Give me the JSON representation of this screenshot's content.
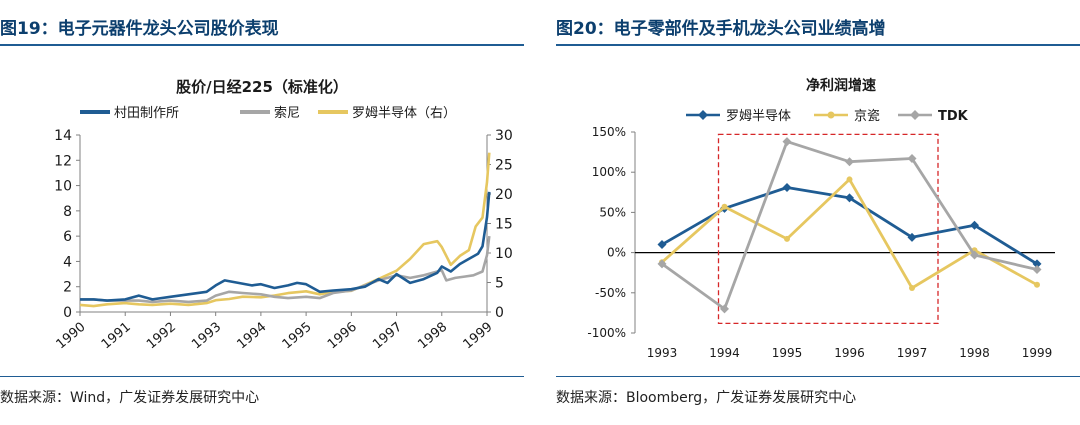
{
  "left": {
    "figure_title": "图19：电子元器件龙头公司股价表现",
    "source": "数据来源：Wind，广发证券发展研究中心"
  },
  "right": {
    "figure_title": "图20：电子零部件及手机龙头公司业绩高增",
    "source": "数据来源：Bloomberg，广发证券发展研究中心"
  },
  "chart_data": [
    {
      "type": "line",
      "title": "股价/日经225（标准化）",
      "x_range": [
        1990,
        1999
      ],
      "x_ticks": [
        "1990",
        "1991",
        "1992",
        "1993",
        "1994",
        "1995",
        "1996",
        "1997",
        "1998",
        "1999"
      ],
      "y_left_range": [
        0,
        14
      ],
      "y_left_ticks": [
        "0",
        "2",
        "4",
        "6",
        "8",
        "10",
        "12",
        "14"
      ],
      "y_right_range": [
        0,
        30
      ],
      "y_right_ticks": [
        "0",
        "5",
        "10",
        "15",
        "20",
        "25",
        "30"
      ],
      "legend_position": "top",
      "series": [
        {
          "name": "村田制作所",
          "color": "#1f5c93",
          "axis": "left",
          "x": [
            1990,
            1990.3,
            1990.6,
            1991,
            1991.3,
            1991.6,
            1992,
            1992.4,
            1992.8,
            1993,
            1993.2,
            1993.5,
            1993.8,
            1994,
            1994.3,
            1994.6,
            1994.8,
            1995,
            1995.3,
            1995.6,
            1996,
            1996.3,
            1996.6,
            1996.8,
            1997,
            1997.3,
            1997.6,
            1997.9,
            1998,
            1998.2,
            1998.4,
            1998.6,
            1998.8,
            1998.9,
            1999,
            1999.05
          ],
          "y": [
            1.0,
            1.0,
            0.9,
            1.0,
            1.3,
            1.0,
            1.2,
            1.4,
            1.6,
            2.1,
            2.5,
            2.3,
            2.1,
            2.2,
            1.9,
            2.1,
            2.3,
            2.2,
            1.6,
            1.7,
            1.8,
            2.0,
            2.6,
            2.3,
            3.0,
            2.3,
            2.6,
            3.1,
            3.6,
            3.2,
            3.8,
            4.2,
            4.6,
            5.2,
            7.5,
            9.5
          ]
        },
        {
          "name": "索尼",
          "color": "#a6a6a6",
          "axis": "left",
          "x": [
            1990,
            1990.3,
            1990.6,
            1991,
            1991.3,
            1991.6,
            1992,
            1992.4,
            1992.8,
            1993,
            1993.3,
            1993.6,
            1994,
            1994.3,
            1994.6,
            1995,
            1995.3,
            1995.6,
            1996,
            1996.3,
            1996.6,
            1997,
            1997.3,
            1997.6,
            1998,
            1998.1,
            1998.3,
            1998.5,
            1998.7,
            1998.9,
            1999,
            1999.05
          ],
          "y": [
            1.0,
            1.0,
            0.9,
            0.9,
            0.9,
            0.8,
            0.9,
            0.8,
            0.9,
            1.3,
            1.6,
            1.5,
            1.4,
            1.2,
            1.1,
            1.2,
            1.1,
            1.5,
            1.7,
            2.1,
            2.5,
            2.9,
            2.7,
            2.9,
            3.3,
            2.5,
            2.7,
            2.8,
            2.9,
            3.2,
            4.5,
            6.0
          ]
        },
        {
          "name": "罗姆半导体（右）",
          "color": "#e6c760",
          "axis": "right",
          "x": [
            1990,
            1990.3,
            1990.6,
            1991,
            1991.3,
            1991.6,
            1992,
            1992.4,
            1992.8,
            1993,
            1993.3,
            1993.6,
            1994,
            1994.3,
            1994.6,
            1995,
            1995.3,
            1995.6,
            1996,
            1996.3,
            1996.6,
            1997,
            1997.3,
            1997.6,
            1997.9,
            1998,
            1998.2,
            1998.4,
            1998.6,
            1998.75,
            1998.9,
            1999,
            1999.05
          ],
          "y": [
            1.2,
            1.0,
            1.3,
            1.5,
            1.3,
            1.2,
            1.4,
            1.2,
            1.5,
            2.0,
            2.2,
            2.6,
            2.5,
            2.8,
            3.2,
            3.5,
            3.0,
            3.4,
            3.6,
            4.6,
            5.6,
            7.0,
            9.0,
            11.5,
            12.0,
            11.0,
            8.0,
            9.5,
            10.5,
            14.5,
            16.0,
            22.0,
            27.0
          ]
        }
      ]
    },
    {
      "type": "line",
      "title": "净利润增速",
      "categories": [
        "1993",
        "1994",
        "1995",
        "1996",
        "1997",
        "1998",
        "1999"
      ],
      "y_range": [
        -100,
        150
      ],
      "y_ticks": [
        "-100%",
        "-50%",
        "0%",
        "50%",
        "100%",
        "150%"
      ],
      "legend_position": "top",
      "series": [
        {
          "name": "罗姆半导体",
          "color": "#1f5c93",
          "marker": "diamond",
          "values": [
            10,
            55,
            81,
            68,
            19,
            34,
            -14
          ]
        },
        {
          "name": "京瓷",
          "color": "#e6c760",
          "marker": "circle",
          "values": [
            -12,
            57,
            17,
            91,
            -44,
            3,
            -40
          ]
        },
        {
          "name": "TDK",
          "color": "#a6a6a6",
          "marker": "diamond",
          "values": [
            -14,
            -70,
            138,
            113,
            117,
            -3,
            -21
          ]
        }
      ]
    }
  ]
}
